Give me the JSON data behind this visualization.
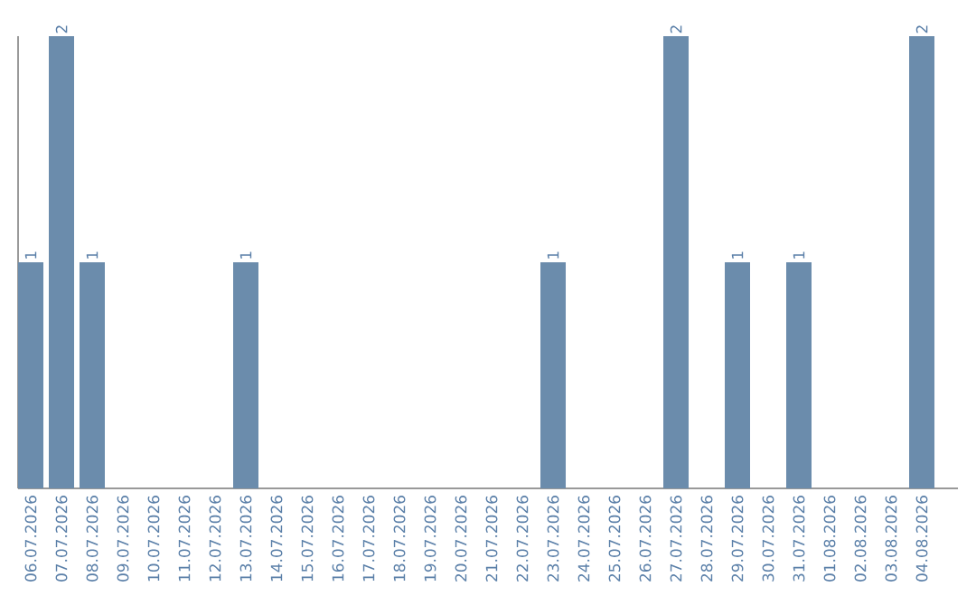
{
  "chart_data": {
    "type": "bar",
    "categories": [
      "06.07.2026",
      "07.07.2026",
      "08.07.2026",
      "09.07.2026",
      "10.07.2026",
      "11.07.2026",
      "12.07.2026",
      "13.07.2026",
      "14.07.2026",
      "15.07.2026",
      "16.07.2026",
      "17.07.2026",
      "18.07.2026",
      "19.07.2026",
      "20.07.2026",
      "21.07.2026",
      "22.07.2026",
      "23.07.2026",
      "24.07.2026",
      "25.07.2026",
      "26.07.2026",
      "27.07.2026",
      "28.07.2026",
      "29.07.2026",
      "30.07.2026",
      "31.07.2026",
      "01.08.2026",
      "02.08.2026",
      "03.08.2026",
      "04.08.2026"
    ],
    "values": [
      1,
      2,
      1,
      0,
      0,
      0,
      0,
      1,
      0,
      0,
      0,
      0,
      0,
      0,
      0,
      0,
      0,
      1,
      0,
      0,
      0,
      2,
      0,
      1,
      0,
      1,
      0,
      0,
      0,
      2
    ],
    "value_labels": [
      "1",
      "2",
      "1",
      null,
      null,
      null,
      null,
      "1",
      null,
      null,
      null,
      null,
      null,
      null,
      null,
      null,
      null,
      "1",
      null,
      null,
      null,
      "2",
      null,
      "1",
      null,
      "1",
      null,
      null,
      null,
      "2"
    ],
    "color": "#6b8cac",
    "ylim": [
      0,
      2
    ],
    "tick_labels": "x",
    "grid": false
  }
}
